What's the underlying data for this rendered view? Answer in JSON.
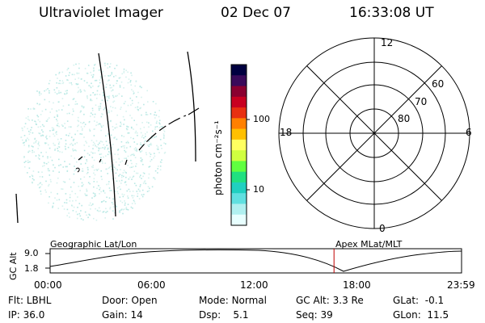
{
  "header": {
    "title": "Ultraviolet Imager",
    "date": "02 Dec 07",
    "time": "16:33:08 UT"
  },
  "colorbar": {
    "unit_label": "photon cm⁻²s⁻¹",
    "ticks": [
      "100",
      "10"
    ],
    "colors": [
      "#000040",
      "#3a0a5a",
      "#8a0030",
      "#c80020",
      "#e83010",
      "#ff8000",
      "#ffc000",
      "#ffff60",
      "#d0ff40",
      "#60ff40",
      "#20e080",
      "#20d0c0",
      "#60e0e0",
      "#b0f0f0",
      "#e8ffff"
    ]
  },
  "polar": {
    "top_label": "12",
    "bottom_label": "0",
    "left_label": "18",
    "right_label": "6",
    "ring_labels": [
      "60",
      "70",
      "80"
    ]
  },
  "timeline": {
    "axis_title": "GC Alt",
    "y_ticks": [
      "9.0",
      "1.8"
    ],
    "left_title": "Geographic Lat/Lon",
    "right_title": "Apex MLat/MLT",
    "x_ticks": [
      "00:00",
      "06:00",
      "12:00",
      "18:00",
      "23:59"
    ],
    "marker_color": "#c00000",
    "marker_time": "16:33"
  },
  "footer": {
    "row1": [
      {
        "label": "Flt:",
        "value": "LBHL"
      },
      {
        "label": "Door:",
        "value": "Open"
      },
      {
        "label": "Mode:",
        "value": "Normal"
      },
      {
        "label": "GC Alt:",
        "value": "3.3 Re"
      },
      {
        "label": "GLat:",
        "value": "-0.1"
      }
    ],
    "row2": [
      {
        "label": "IP:",
        "value": "36.0"
      },
      {
        "label": "Gain:",
        "value": "14"
      },
      {
        "label": "Dsp:",
        "value": "5.1"
      },
      {
        "label": "Seq:",
        "value": "39"
      },
      {
        "label": "GLon:",
        "value": "11.5"
      }
    ]
  }
}
